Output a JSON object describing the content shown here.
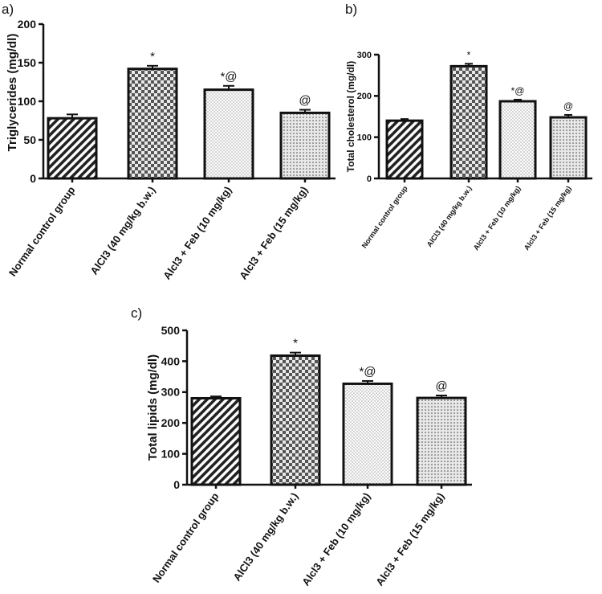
{
  "chart_data": [
    {
      "panel": "a)",
      "type": "bar",
      "ylabel": "Triglycerides (mg/dl)",
      "ylim": [
        0,
        200
      ],
      "yticks": [
        0,
        50,
        100,
        150,
        200
      ],
      "categories": [
        "Normal control group",
        "AlCl3  (40 mg/kg b.w.)",
        "Alcl3 + Feb (10 mg/kg)",
        "Alcl3 + Feb (15 mg/kg)"
      ],
      "values": [
        78,
        142,
        115,
        85
      ],
      "errors": [
        5,
        4,
        5,
        4
      ],
      "annotations": [
        "",
        "*",
        "*@",
        "@"
      ],
      "patterns": [
        "diagonal-stripes",
        "checkerboard",
        "fine-dots",
        "dots"
      ]
    },
    {
      "panel": "b)",
      "type": "bar",
      "ylabel": "Total cholesterol (mg/dl)",
      "ylim": [
        0,
        300
      ],
      "yticks": [
        0,
        100,
        200,
        300
      ],
      "categories": [
        "Normal control group",
        "AlCl3  (40 mg/kg b.w.)",
        "Alcl3 + Feb (10 mg/kg)",
        "Alcl3 + Feb (15 mg/kg)"
      ],
      "values": [
        140,
        272,
        187,
        148
      ],
      "errors": [
        4,
        6,
        4,
        6
      ],
      "annotations": [
        "",
        "*",
        "*@",
        "@"
      ],
      "patterns": [
        "diagonal-stripes",
        "checkerboard",
        "fine-dots",
        "dots"
      ]
    },
    {
      "panel": "c)",
      "type": "bar",
      "ylabel": "Total lipids (mg/dl)",
      "ylim": [
        0,
        500
      ],
      "yticks": [
        0,
        100,
        200,
        300,
        400,
        500
      ],
      "categories": [
        "Normal control group",
        "AlCl3  (40 mg/kg b.w.)",
        "Alcl3  + Feb (10 mg/kg)",
        "Alcl3 + Feb (15 mg/kg)"
      ],
      "values": [
        280,
        418,
        327,
        281
      ],
      "errors": [
        6,
        10,
        9,
        8
      ],
      "annotations": [
        "",
        "*",
        "*@",
        "@"
      ],
      "patterns": [
        "diagonal-stripes",
        "checkerboard",
        "fine-dots",
        "dots"
      ]
    }
  ]
}
